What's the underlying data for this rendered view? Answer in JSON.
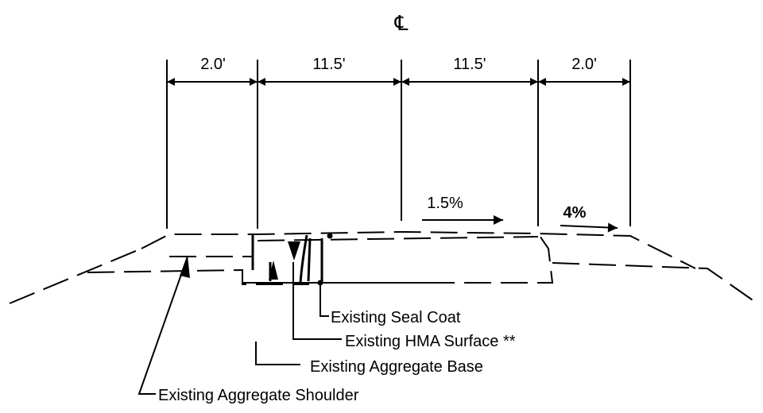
{
  "centerline": {
    "symbol": "℄"
  },
  "dimensions": [
    {
      "id": "left-shoulder",
      "label": "2.0'"
    },
    {
      "id": "left-lane",
      "label": "11.5'"
    },
    {
      "id": "right-lane",
      "label": "11.5'"
    },
    {
      "id": "right-shoulder",
      "label": "2.0'"
    }
  ],
  "slopes": [
    {
      "id": "lane",
      "label": "1.5%"
    },
    {
      "id": "shoulder",
      "label": "4%"
    }
  ],
  "callouts": [
    {
      "id": "seal-coat",
      "label": "Existing Seal Coat"
    },
    {
      "id": "hma-surface",
      "label": "Existing HMA Surface **"
    },
    {
      "id": "aggregate-base",
      "label": "Existing Aggregate Base"
    },
    {
      "id": "aggregate-shoulder",
      "label": "Existing Aggregate Shoulder"
    }
  ],
  "colors": {
    "line": "#000000",
    "background": "#ffffff"
  }
}
